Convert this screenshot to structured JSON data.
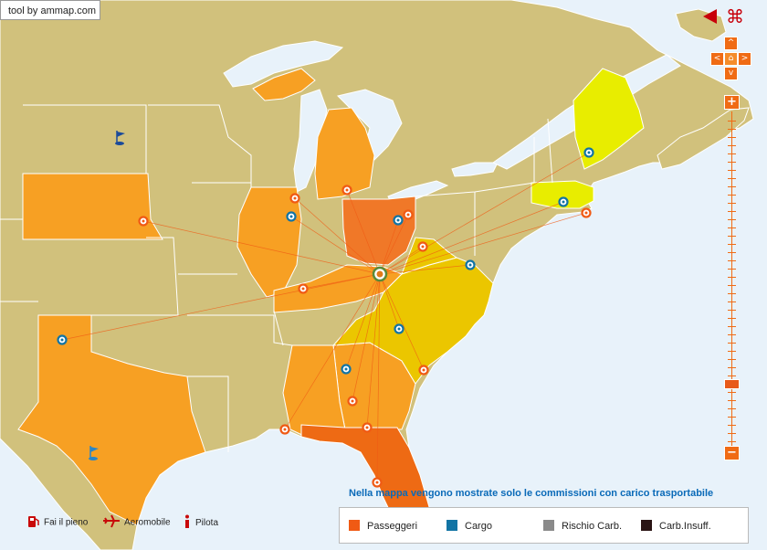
{
  "credit": "tool by ammap.com",
  "note": "Nella mappa vengono mostrate solo le commissioni con carico trasportabile",
  "legend": [
    {
      "label": "Passeggeri",
      "color": "#f05a14"
    },
    {
      "label": "Cargo",
      "color": "#1274a4"
    },
    {
      "label": "Rischio Carb.",
      "color": "#8a8a8a"
    },
    {
      "label": "Carb.Insuff.",
      "color": "#2a1414"
    }
  ],
  "bottom_legend": [
    {
      "label": "Fai il pieno",
      "icon": "fuel-pump-icon"
    },
    {
      "label": "Aeromobile",
      "icon": "airplane-icon"
    },
    {
      "label": "Pilota",
      "icon": "info-pilot-icon"
    }
  ],
  "controls": {
    "back_icon": "back-arrow-icon",
    "command_icon": "command-icon",
    "up": "^",
    "down": "v",
    "left": "<",
    "right": ">",
    "home": "⌂",
    "zoom_in": "+",
    "zoom_out": "−",
    "zoom_level": 0.2
  },
  "colors": {
    "land": "#d1c17c",
    "water": "#e8f2fa",
    "highlight_orange": "#f7a023",
    "highlight_dark": "#f07828",
    "highlight_florida": "#ee6a14",
    "highlight_yellow": "#ebc600",
    "highlight_lemon": "#e8ed00",
    "passenger_marker": "#f05a14",
    "cargo_marker": "#1274a4",
    "hub": "#5a8a3a"
  }
}
